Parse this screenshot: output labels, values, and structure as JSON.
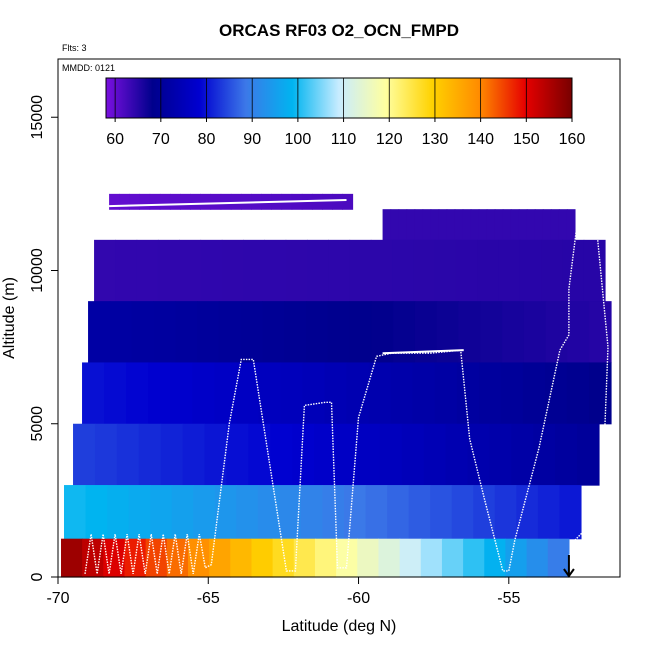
{
  "chart_data": {
    "type": "heatmap",
    "title": "ORCAS RF03 O2_OCN_FMPD",
    "flights_note": "Flts: 3",
    "date_note": "MMDD: 0121",
    "xlabel": "Latitude (deg N)",
    "ylabel": "Altitude (m)",
    "xlim": [
      -70,
      -51.3
    ],
    "ylim": [
      0,
      16900
    ],
    "x_ticks": [
      -70,
      -65,
      -60,
      -55
    ],
    "y_ticks": [
      0,
      5000,
      10000,
      15000
    ],
    "grid": false,
    "colorbar": {
      "position": "top, inside plot",
      "ticks": [
        60,
        70,
        80,
        90,
        100,
        110,
        120,
        130,
        140,
        150,
        160
      ],
      "range": [
        58,
        160
      ],
      "colors": [
        "#7a10e0",
        "#00008c",
        "#0000d0",
        "#3c78e8",
        "#00b4f0",
        "#c8ecff",
        "#ffffa0",
        "#ffd200",
        "#ff8c00",
        "#e60000",
        "#780000"
      ]
    },
    "field_rows": [
      {
        "alt": 12000,
        "lat_min": -68.3,
        "lat_max": -60.2,
        "value_south": 60,
        "value_north": 62
      },
      {
        "alt": 12000,
        "lat_min": -59.2,
        "lat_max": -52.8,
        "value_south": 64,
        "value_north": 64
      },
      {
        "alt": 10000,
        "lat_min": -68.8,
        "lat_max": -51.8,
        "value_south": 64,
        "value_north": 65
      },
      {
        "alt": 8000,
        "lat_min": -69.0,
        "lat_max": -51.6,
        "value_south": 72,
        "value_north": 65
      },
      {
        "alt": 6000,
        "lat_min": -69.2,
        "lat_max": -51.6,
        "value_south": 80,
        "value_north": 68
      },
      {
        "alt": 4000,
        "lat_min": -69.5,
        "lat_max": -52.0,
        "value_south": 84,
        "value_north": 70
      },
      {
        "alt": 2000,
        "lat_min": -69.8,
        "lat_max": -52.6,
        "value_south": 100,
        "value_north": 80
      },
      {
        "alt": 500,
        "lat_min": -69.9,
        "lat_max": -53.0,
        "value_south": 158,
        "value_north": 88
      }
    ],
    "flight_track": {
      "lat": [
        -69.1,
        -68.9,
        -68.7,
        -68.5,
        -68.3,
        -68.1,
        -67.9,
        -67.7,
        -67.5,
        -67.3,
        -67.1,
        -66.9,
        -66.7,
        -66.5,
        -66.3,
        -66.1,
        -65.9,
        -65.7,
        -65.5,
        -65.3,
        -65.1,
        -64.9,
        -64.3,
        -63.9,
        -63.5,
        -62.4,
        -62.1,
        -61.8,
        -61.1,
        -60.9,
        -60.7,
        -60.4,
        -60.0,
        -59.4,
        -58.9,
        -58.6,
        -58.3,
        -57.6,
        -56.6,
        -56.3,
        -55.8,
        -55.2,
        -55.0,
        -54.8,
        -54.0,
        -53.3,
        -53.0,
        -53.0,
        -52.6,
        -52.2,
        -51.7,
        -51.9,
        -52.5,
        -52.8,
        -52.8,
        -53.0,
        -53.0
      ],
      "alt": [
        100,
        1400,
        100,
        1400,
        100,
        1400,
        100,
        1400,
        100,
        1400,
        100,
        1400,
        100,
        1400,
        100,
        1400,
        100,
        1400,
        100,
        1400,
        300,
        400,
        5000,
        7100,
        7100,
        200,
        200,
        5600,
        5700,
        5700,
        300,
        300,
        5200,
        7200,
        7300,
        7300,
        7300,
        7300,
        7400,
        4500,
        2500,
        200,
        200,
        1200,
        4200,
        7400,
        7900,
        9400,
        12500,
        12600,
        7500,
        2500,
        1500,
        1200,
        800,
        700,
        0
      ]
    },
    "reference_lines": [
      {
        "lat": [
          -68.3,
          -60.4
        ],
        "alt": [
          12100,
          12300
        ]
      },
      {
        "lat": [
          -59.9,
          -52.9
        ],
        "alt": [
          12200,
          12600
        ]
      },
      {
        "lat": [
          -59.2,
          -56.5
        ],
        "alt": [
          7300,
          7400
        ]
      }
    ],
    "end_arrow": {
      "lat": -53.0,
      "alt": 0
    }
  }
}
